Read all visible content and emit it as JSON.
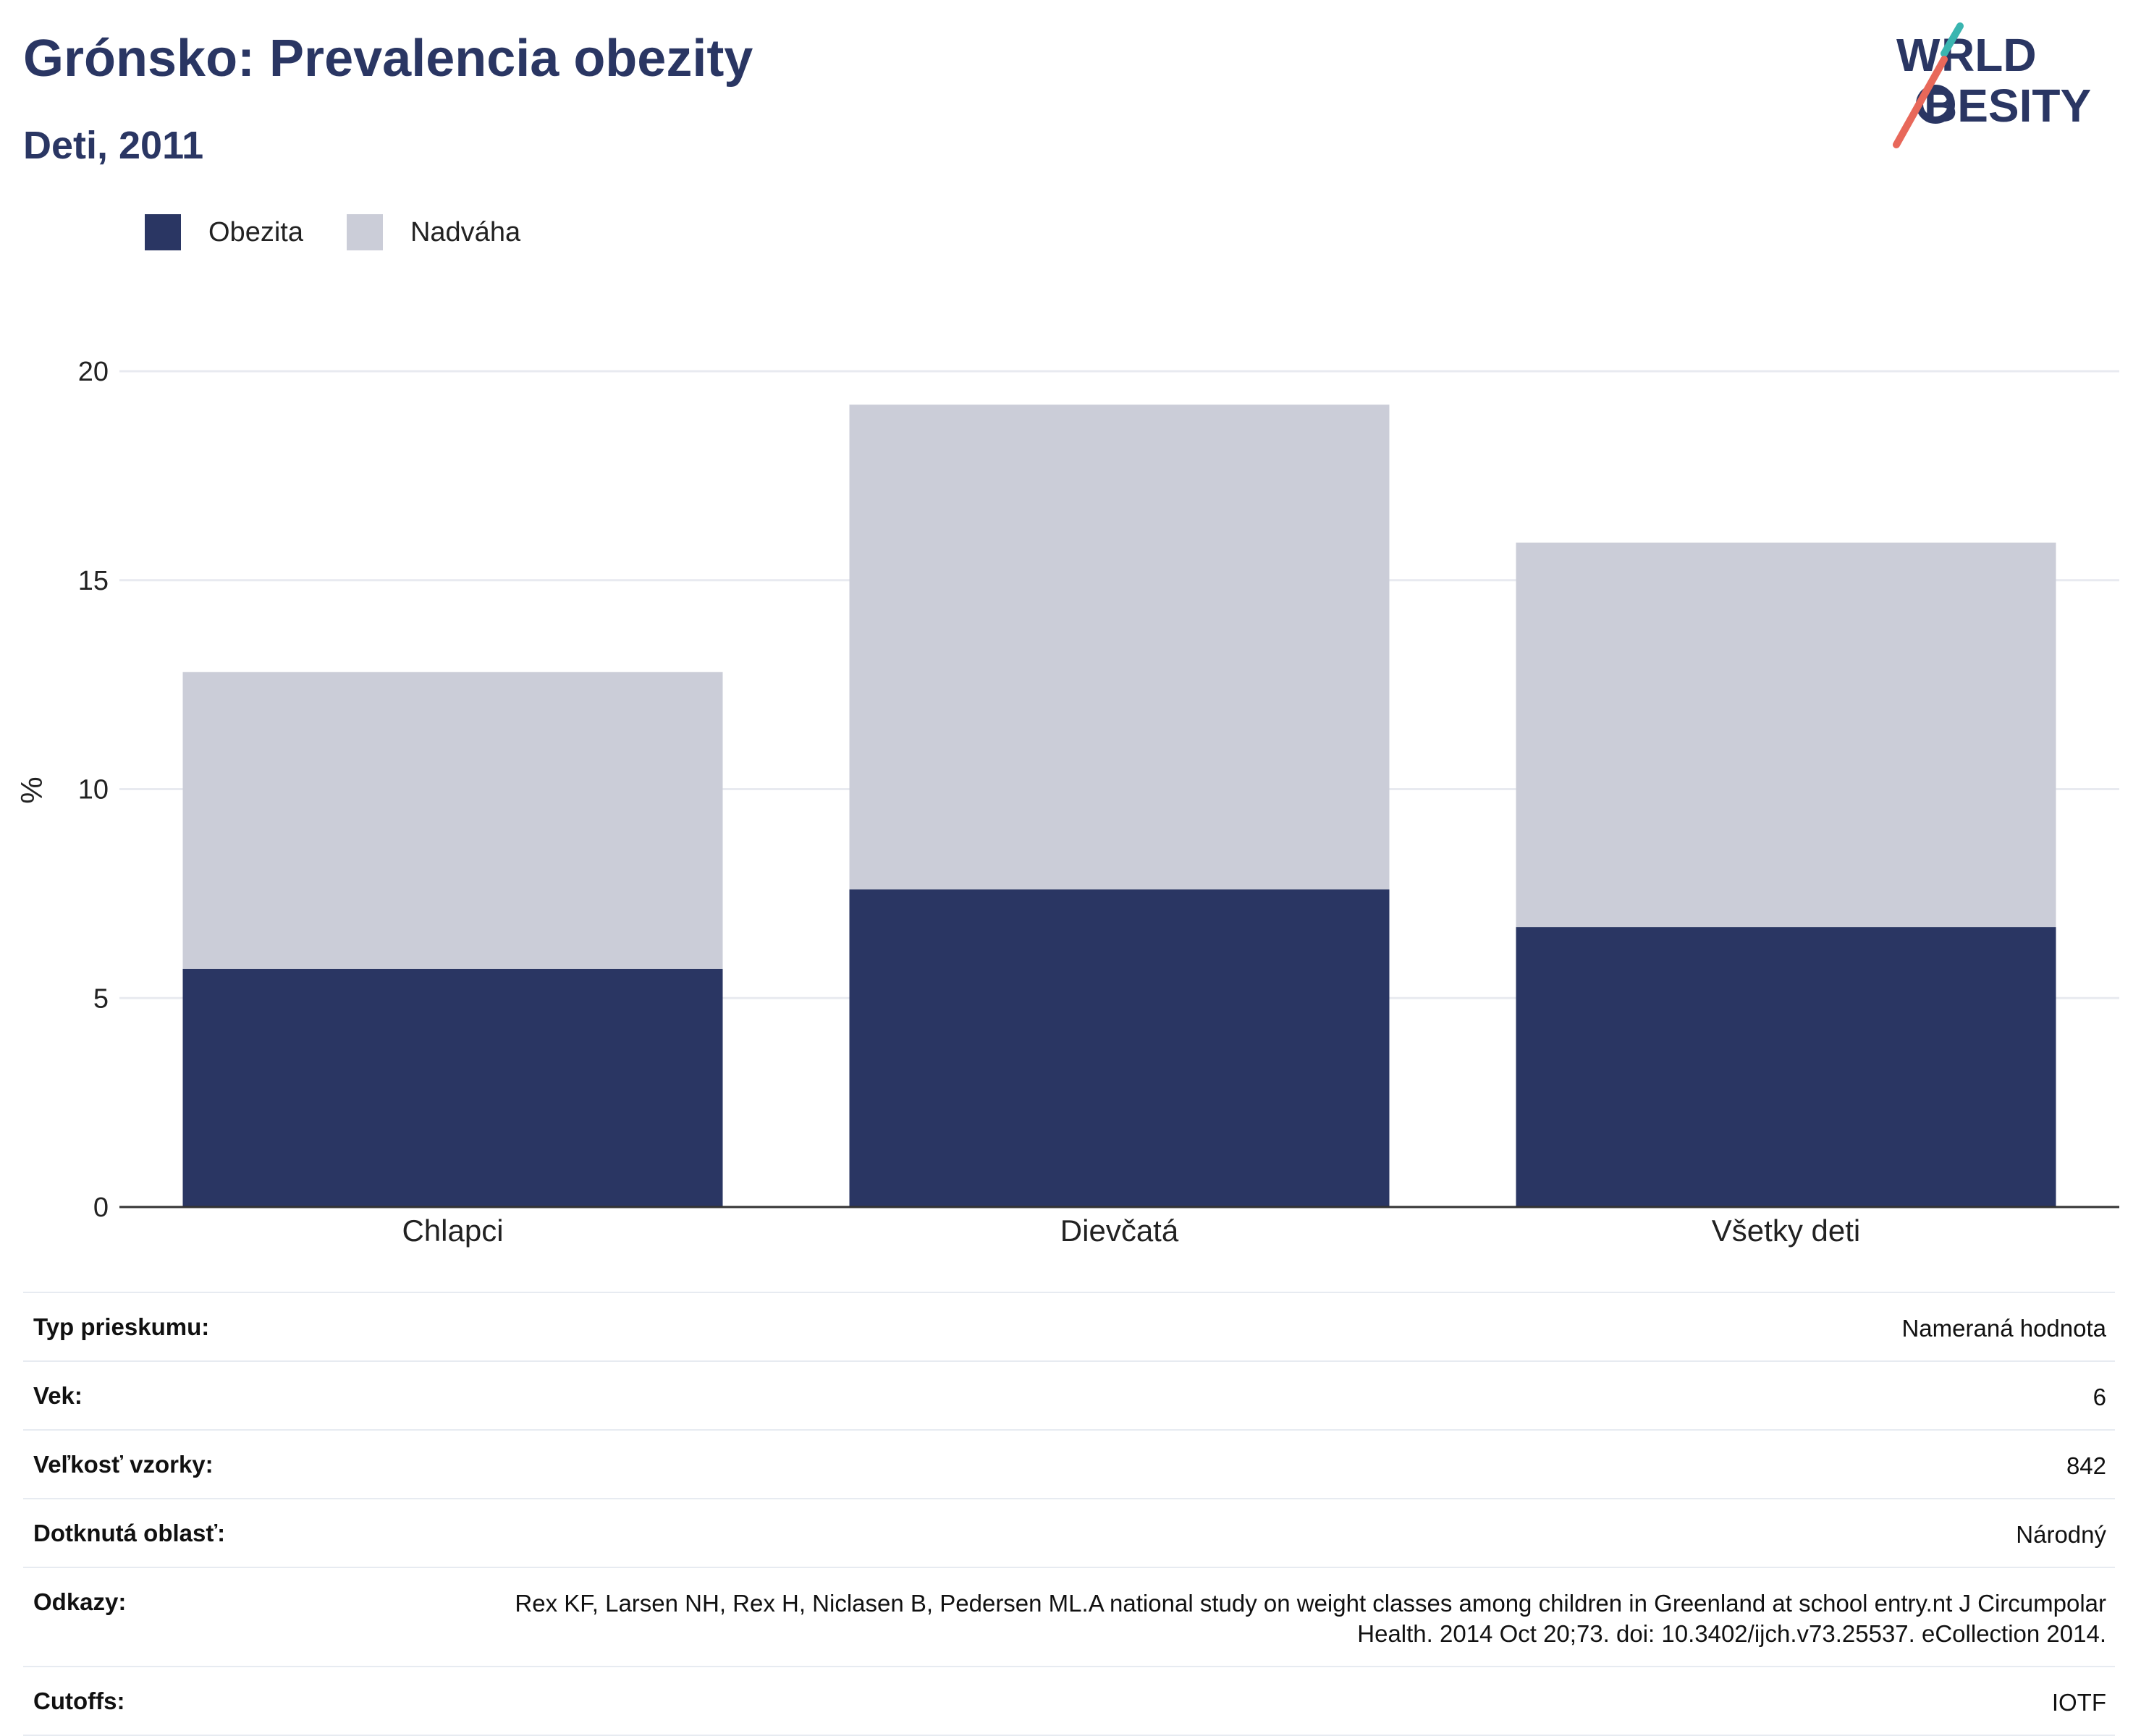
{
  "header": {
    "title": "Grónsko: Prevalencia obezity",
    "subtitle": "Deti, 2011",
    "logo_text": [
      "WORLD",
      "OBESITY"
    ]
  },
  "colors": {
    "obesity": "#2a3663",
    "overweight": "#cbcdd8",
    "gridline": "#e8eaf0",
    "axis": "#333333",
    "logo_teal": "#3ab5b0",
    "logo_red": "#e8685a"
  },
  "chart_data": {
    "type": "bar",
    "stacked": true,
    "categories": [
      "Chlapci",
      "Dievčatá",
      "Všetky deti"
    ],
    "series": [
      {
        "name": "Obezita",
        "values": [
          5.7,
          7.6,
          6.7
        ]
      },
      {
        "name": "Nadváha",
        "values": [
          7.1,
          11.6,
          9.2
        ]
      }
    ],
    "ylabel": "%",
    "ylim": [
      0,
      20
    ],
    "yticks": [
      0,
      5,
      10,
      15,
      20
    ],
    "grid": true,
    "legend_position": "top-left"
  },
  "info": [
    {
      "label": "Typ prieskumu:",
      "value": "Nameraná hodnota"
    },
    {
      "label": "Vek:",
      "value": "6"
    },
    {
      "label": "Veľkosť vzorky:",
      "value": "842"
    },
    {
      "label": "Dotknutá oblasť:",
      "value": "Národný"
    },
    {
      "label": "Odkazy:",
      "value": "Rex KF, Larsen NH, Rex H, Niclasen B, Pedersen ML.A national study on weight classes among children in Greenland at school entry.nt J Circumpolar Health. 2014 Oct 20;73. doi: 10.3402/ijch.v73.25537. eCollection 2014."
    },
    {
      "label": "Cutoffs:",
      "value": "IOTF"
    }
  ]
}
